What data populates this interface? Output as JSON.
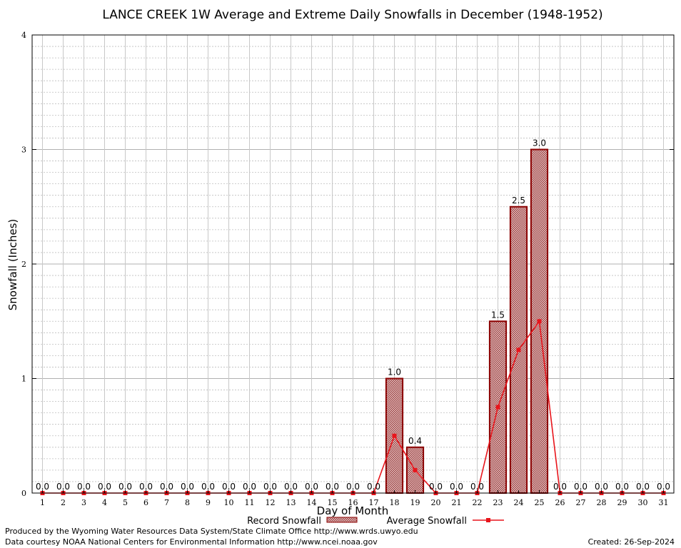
{
  "chart_data": {
    "type": "bar",
    "title": "LANCE CREEK 1W Average and Extreme Daily Snowfalls in December (1948-1952)",
    "xlabel": "Day of Month",
    "ylabel": "Snowfall (Inches)",
    "ylim": [
      0,
      4
    ],
    "yticks": [
      "0",
      "1",
      "2",
      "3",
      "4"
    ],
    "grid": true,
    "categories": [
      "1",
      "2",
      "3",
      "4",
      "5",
      "6",
      "7",
      "8",
      "9",
      "10",
      "11",
      "12",
      "13",
      "14",
      "15",
      "16",
      "17",
      "18",
      "19",
      "20",
      "21",
      "22",
      "23",
      "24",
      "25",
      "26",
      "27",
      "28",
      "29",
      "30",
      "31"
    ],
    "series": [
      {
        "name": "Record Snowfall",
        "kind": "bar",
        "values": [
          0,
          0,
          0,
          0,
          0,
          0,
          0,
          0,
          0,
          0,
          0,
          0,
          0,
          0,
          0,
          0,
          0,
          1.0,
          0.4,
          0,
          0,
          0,
          1.5,
          2.5,
          3.0,
          0,
          0,
          0,
          0,
          0,
          0
        ],
        "labels": [
          "0.0",
          "0.0",
          "0.0",
          "0.0",
          "0.0",
          "0.0",
          "0.0",
          "0.0",
          "0.0",
          "0.0",
          "0.0",
          "0.0",
          "0.0",
          "0.0",
          "0.0",
          "0.0",
          "0.0",
          "1.0",
          "0.4",
          "0.0",
          "0.0",
          "0.0",
          "1.5",
          "2.5",
          "3.0",
          "0.0",
          "0.0",
          "0.0",
          "0.0",
          "0.0",
          "0.0"
        ]
      },
      {
        "name": "Average Snowfall",
        "kind": "line",
        "values": [
          0,
          0,
          0,
          0,
          0,
          0,
          0,
          0,
          0,
          0,
          0,
          0,
          0,
          0,
          0,
          0,
          0,
          0.5,
          0.2,
          0,
          0,
          0,
          0.75,
          1.25,
          1.5,
          0,
          0,
          0,
          0,
          0,
          0
        ]
      }
    ],
    "legend_position": "bottom",
    "colors": {
      "bar_fill": "#b07070",
      "bar_edge": "#8b0000",
      "line": "#e8141b",
      "grid": "#c8c8c8"
    }
  },
  "footer": {
    "credit1": "Produced by the Wyoming Water Resources Data System/State Climate Office http://www.wrds.uwyo.edu",
    "credit2": "Data courtesy NOAA National Centers for Environmental Information http://www.ncei.noaa.gov",
    "created": "Created:  26-Sep-2024"
  }
}
